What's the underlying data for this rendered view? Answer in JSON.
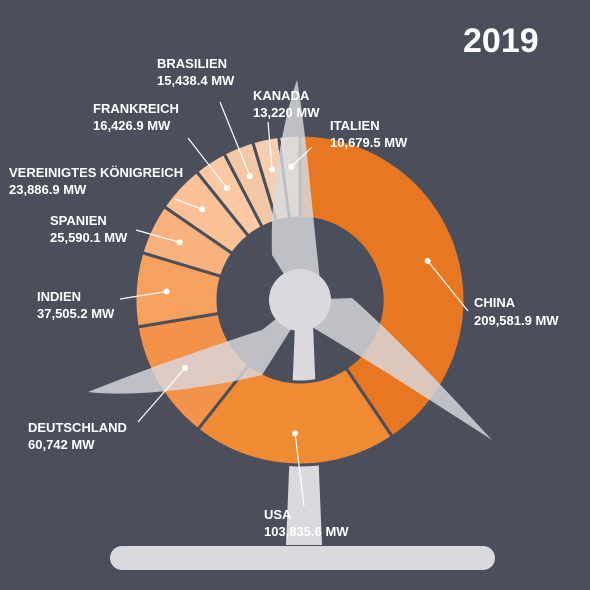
{
  "year": "2019",
  "colors": {
    "background": "#4a4f5b",
    "turbine": "#d9d9de",
    "china": "#e87722",
    "usa": "#f08a33",
    "deutschland": "#f3934a",
    "indien": "#f7a15e",
    "spanien": "#f9b27e",
    "vereinigtes_koenigreich": "#fbc196",
    "frankreich": "#fbc9a3",
    "brasilien": "#f2c8a6",
    "kanada": "#f5cfb0",
    "italien": "#f7d8bd"
  },
  "chart_data": {
    "type": "pie",
    "title": "2019",
    "unit": "MW",
    "categories": [
      "China",
      "USA",
      "Deutschland",
      "Indien",
      "Spanien",
      "Vereinigtes Königreich",
      "Frankreich",
      "Brasilien",
      "Kanada",
      "Italien"
    ],
    "values": [
      209581.9,
      103835.6,
      60742,
      37505.2,
      25590.1,
      23886.9,
      16426.9,
      15438.4,
      13220,
      10679.5
    ],
    "slices": [
      {
        "name": "CHINA",
        "value": 209581.9,
        "value_label": "209,581.9 MW",
        "color": "#e87722"
      },
      {
        "name": "USA",
        "value": 103835.6,
        "value_label": "103,835.6 MW",
        "color": "#f08a33"
      },
      {
        "name": "DEUTSCHLAND",
        "value": 60742,
        "value_label": "60,742 MW",
        "color": "#f3934a"
      },
      {
        "name": "INDIEN",
        "value": 37505.2,
        "value_label": "37,505.2 MW",
        "color": "#f7a15e"
      },
      {
        "name": "SPANIEN",
        "value": 25590.1,
        "value_label": "25,590.1 MW",
        "color": "#f9b27e"
      },
      {
        "name": "VEREINIGTES KÖNIGREICH",
        "value": 23886.9,
        "value_label": "23,886.9 MW",
        "color": "#fbc196"
      },
      {
        "name": "FRANKREICH",
        "value": 16426.9,
        "value_label": "16,426.9 MW",
        "color": "#fbc9a3"
      },
      {
        "name": "BRASILIEN",
        "value": 15438.4,
        "value_label": "15,438.4 MW",
        "color": "#f2c8a6"
      },
      {
        "name": "KANADA",
        "value": 13220,
        "value_label": "13,220 MW",
        "color": "#f5cfb0"
      },
      {
        "name": "ITALIEN",
        "value": 10679.5,
        "value_label": "10,679.5 MW",
        "color": "#f7d8bd"
      }
    ]
  }
}
